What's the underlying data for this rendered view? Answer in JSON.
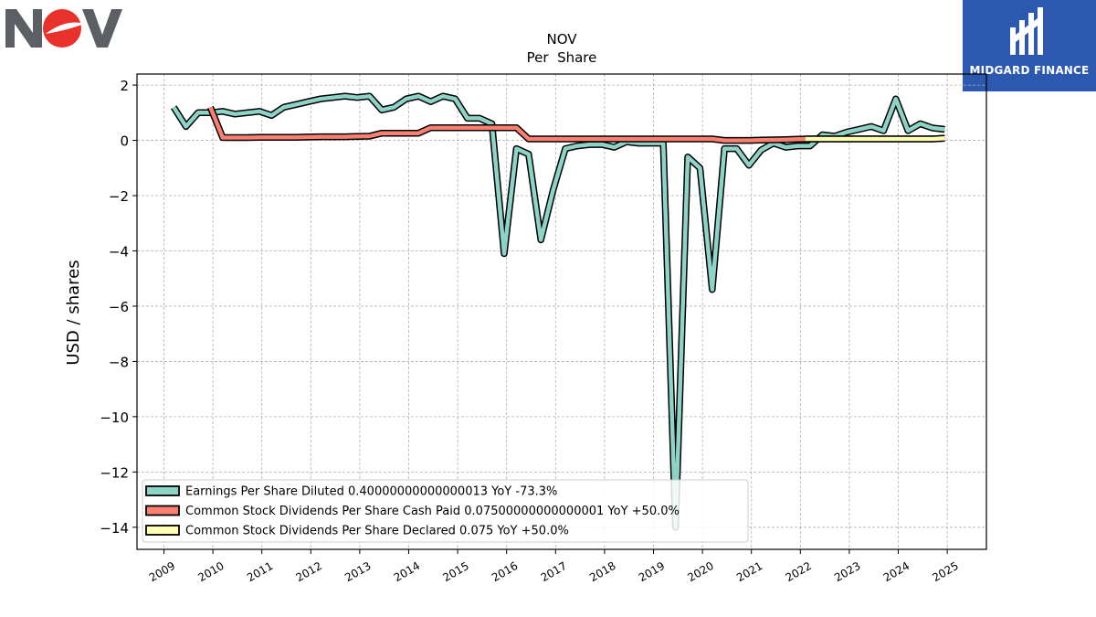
{
  "logos": {
    "left_text": "NOV",
    "right_text": "MIDGARD FINANCE",
    "right_bg": "#2d58b0"
  },
  "chart_data": {
    "type": "line",
    "title": "NOV",
    "subtitle": "Per  Share",
    "ylabel": "USD / shares",
    "xlabel": "",
    "xlim": [
      2008.45,
      2025.8
    ],
    "ylim": [
      -14.8,
      2.4
    ],
    "yticks": [
      2,
      0,
      -2,
      -4,
      -6,
      -8,
      -10,
      -12,
      -14
    ],
    "ytick_labels": [
      "2",
      "0",
      "−2",
      "−4",
      "−6",
      "−8",
      "−10",
      "−12",
      "−14"
    ],
    "xticks": [
      2009,
      2010,
      2011,
      2012,
      2013,
      2014,
      2015,
      2016,
      2017,
      2018,
      2019,
      2020,
      2021,
      2022,
      2023,
      2024,
      2025
    ],
    "grid": true,
    "legend_position": "lower-left",
    "series": [
      {
        "name": "Earnings Per Share Diluted  0.40000000000000013 YoY -73.3%",
        "color": "#8dd3c7",
        "x": [
          2009.2,
          2009.45,
          2009.7,
          2009.95,
          2010.2,
          2010.45,
          2010.7,
          2010.95,
          2011.2,
          2011.45,
          2011.7,
          2011.95,
          2012.2,
          2012.45,
          2012.7,
          2012.95,
          2013.2,
          2013.45,
          2013.7,
          2013.95,
          2014.2,
          2014.45,
          2014.7,
          2014.95,
          2015.2,
          2015.45,
          2015.7,
          2015.95,
          2016.2,
          2016.45,
          2016.7,
          2016.95,
          2017.2,
          2017.45,
          2017.7,
          2017.95,
          2018.2,
          2018.45,
          2018.7,
          2018.95,
          2019.2,
          2019.45,
          2019.7,
          2019.95,
          2020.2,
          2020.45,
          2020.7,
          2020.95,
          2021.2,
          2021.45,
          2021.7,
          2021.95,
          2022.2,
          2022.45,
          2022.7,
          2022.95,
          2023.2,
          2023.45,
          2023.7,
          2023.95,
          2024.2,
          2024.45,
          2024.7,
          2024.95
        ],
        "values": [
          1.2,
          0.5,
          1.0,
          1.0,
          1.05,
          0.95,
          1.0,
          1.05,
          0.9,
          1.2,
          1.3,
          1.4,
          1.5,
          1.55,
          1.6,
          1.55,
          1.6,
          1.1,
          1.2,
          1.5,
          1.6,
          1.4,
          1.6,
          1.5,
          0.8,
          0.8,
          0.6,
          -4.1,
          -0.3,
          -0.5,
          -3.6,
          -1.8,
          -0.3,
          -0.2,
          -0.15,
          -0.15,
          -0.25,
          -0.05,
          -0.1,
          -0.1,
          -0.1,
          -14.0,
          -0.6,
          -1.0,
          -5.4,
          -0.3,
          -0.3,
          -0.9,
          -0.35,
          -0.1,
          -0.25,
          -0.2,
          -0.2,
          0.2,
          0.15,
          0.3,
          0.4,
          0.5,
          0.35,
          1.5,
          0.35,
          0.6,
          0.45,
          0.4
        ]
      },
      {
        "name": "Common Stock Dividends Per Share Cash Paid  0.07500000000000001 YoY +50.0%",
        "color": "#fb8072",
        "x": [
          2009.95,
          2010.2,
          2010.45,
          2010.7,
          2010.95,
          2011.2,
          2011.45,
          2011.7,
          2011.95,
          2012.2,
          2012.45,
          2012.7,
          2012.95,
          2013.2,
          2013.45,
          2013.7,
          2013.95,
          2014.2,
          2014.45,
          2014.7,
          2014.95,
          2015.2,
          2015.45,
          2015.7,
          2015.95,
          2016.2,
          2016.45,
          2016.7,
          2016.95,
          2017.2,
          2017.45,
          2017.7,
          2017.95,
          2018.2,
          2018.45,
          2018.7,
          2018.95,
          2019.2,
          2019.45,
          2019.7,
          2019.95,
          2020.2,
          2020.45,
          2020.7,
          2020.95,
          2021.2,
          2021.45,
          2021.7,
          2021.95,
          2022.2,
          2022.45,
          2022.7,
          2022.95,
          2023.2,
          2023.45,
          2023.7,
          2023.95,
          2024.2,
          2024.45,
          2024.7,
          2024.95
        ],
        "values": [
          1.2,
          0.1,
          0.1,
          0.1,
          0.11,
          0.11,
          0.11,
          0.11,
          0.12,
          0.13,
          0.13,
          0.13,
          0.14,
          0.15,
          0.26,
          0.26,
          0.26,
          0.26,
          0.46,
          0.46,
          0.46,
          0.46,
          0.46,
          0.46,
          0.46,
          0.46,
          0.05,
          0.05,
          0.05,
          0.05,
          0.05,
          0.05,
          0.05,
          0.05,
          0.05,
          0.05,
          0.05,
          0.05,
          0.05,
          0.05,
          0.05,
          0.05,
          0.0,
          0.0,
          0.0,
          0.01,
          0.02,
          0.03,
          0.04,
          0.05,
          0.05,
          0.05,
          0.05,
          0.05,
          0.05,
          0.05,
          0.05,
          0.05,
          0.05,
          0.05,
          0.075
        ]
      },
      {
        "name": "Common Stock Dividends Per Share Declared  0.075 YoY +50.0%",
        "color": "#ffffb3",
        "x": [
          2022.1,
          2022.45,
          2022.7,
          2022.95,
          2023.2,
          2023.45,
          2023.7,
          2023.95,
          2024.2,
          2024.45,
          2024.7,
          2024.95
        ],
        "values": [
          0.05,
          0.05,
          0.05,
          0.05,
          0.05,
          0.05,
          0.05,
          0.05,
          0.05,
          0.05,
          0.05,
          0.075
        ]
      }
    ]
  }
}
